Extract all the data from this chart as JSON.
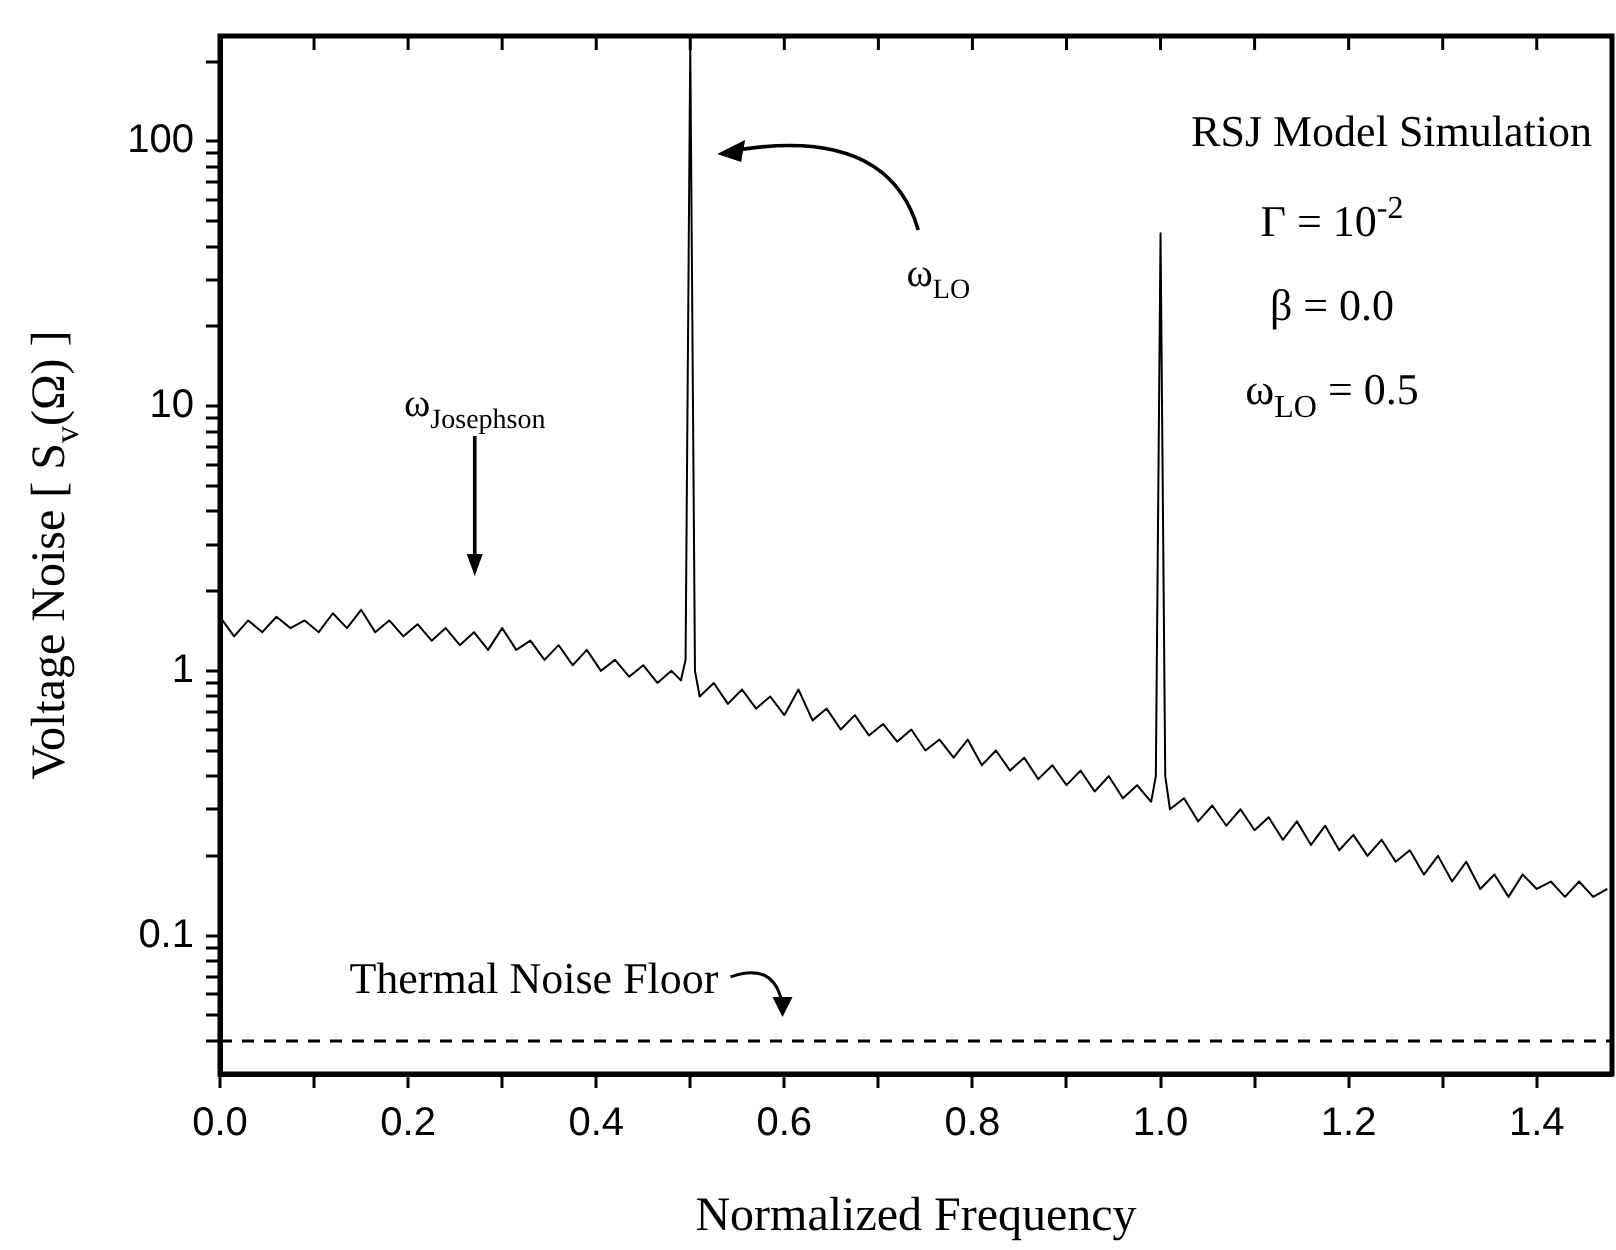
{
  "chart_data": {
    "type": "line",
    "xlabel": "Normalized Frequency",
    "ylabel": "Voltage Noise [ S$_{v}$(Ω) ]",
    "log": "y",
    "marker": "none",
    "line_style": "solid",
    "xlim": [
      0,
      1.48
    ],
    "xticks": [
      {
        "value": 0,
        "label": "0.0"
      },
      {
        "value": 0.1,
        "label": null
      },
      {
        "value": 0.2,
        "label": "0.2"
      },
      {
        "value": 0.3,
        "label": null
      },
      {
        "value": 0.4,
        "label": "0.4"
      },
      {
        "value": 0.5,
        "label": null
      },
      {
        "value": 0.6,
        "label": "0.6"
      },
      {
        "value": 0.7,
        "label": null
      },
      {
        "value": 0.8,
        "label": "0.8"
      },
      {
        "value": 0.9,
        "label": null
      },
      {
        "value": 1,
        "label": "1.0"
      },
      {
        "value": 1.1,
        "label": null
      },
      {
        "value": 1.2,
        "label": "1.2"
      },
      {
        "value": 1.3,
        "label": null
      },
      {
        "value": 1.4,
        "label": "1.4"
      }
    ],
    "ylim": [
      0.03,
      250
    ],
    "yticks": [
      {
        "value": 0.04,
        "label": null
      },
      {
        "value": 0.05,
        "label": null
      },
      {
        "value": 0.06,
        "label": null
      },
      {
        "value": 0.07,
        "label": null
      },
      {
        "value": 0.08,
        "label": null
      },
      {
        "value": 0.09,
        "label": null
      },
      0.1,
      {
        "value": 0.2,
        "label": null
      },
      {
        "value": 0.3,
        "label": null
      },
      {
        "value": 0.4,
        "label": null
      },
      {
        "value": 0.5,
        "label": null
      },
      {
        "value": 0.6,
        "label": null
      },
      {
        "value": 0.7,
        "label": null
      },
      {
        "value": 0.8,
        "label": null
      },
      {
        "value": 0.9,
        "label": null
      },
      1,
      {
        "value": 2,
        "label": null
      },
      {
        "value": 3,
        "label": null
      },
      {
        "value": 4,
        "label": null
      },
      {
        "value": 5,
        "label": null
      },
      {
        "value": 6,
        "label": null
      },
      {
        "value": 7,
        "label": null
      },
      {
        "value": 8,
        "label": null
      },
      {
        "value": 9,
        "label": null
      },
      10,
      {
        "value": 20,
        "label": null
      },
      {
        "value": 30,
        "label": null
      },
      {
        "value": 40,
        "label": null
      },
      {
        "value": 50,
        "label": null
      },
      {
        "value": 60,
        "label": null
      },
      {
        "value": 70,
        "label": null
      },
      {
        "value": 80,
        "label": null
      },
      {
        "value": 90,
        "label": null
      },
      100,
      {
        "value": 200,
        "label": null
      }
    ],
    "series": [
      {
        "color": "#000000",
        "x": [
          0,
          0.015,
          0.03,
          0.045,
          0.06,
          0.075,
          0.09,
          0.105,
          0.12,
          0.135,
          0.15,
          0.165,
          0.18,
          0.195,
          0.21,
          0.225,
          0.24,
          0.255,
          0.27,
          0.285,
          0.3,
          0.315,
          0.33,
          0.345,
          0.36,
          0.375,
          0.39,
          0.405,
          0.42,
          0.435,
          0.45,
          0.465,
          0.48,
          0.49,
          0.495,
          0.5,
          0.505,
          0.51,
          0.525,
          0.54,
          0.555,
          0.57,
          0.585,
          0.6,
          0.615,
          0.63,
          0.645,
          0.66,
          0.675,
          0.69,
          0.705,
          0.72,
          0.735,
          0.75,
          0.765,
          0.78,
          0.795,
          0.81,
          0.825,
          0.84,
          0.855,
          0.87,
          0.885,
          0.9,
          0.915,
          0.93,
          0.945,
          0.96,
          0.975,
          0.99,
          0.995,
          1,
          1.005,
          1.01,
          1.025,
          1.04,
          1.055,
          1.07,
          1.085,
          1.1,
          1.115,
          1.13,
          1.145,
          1.16,
          1.175,
          1.19,
          1.205,
          1.22,
          1.235,
          1.25,
          1.265,
          1.28,
          1.295,
          1.31,
          1.325,
          1.34,
          1.355,
          1.37,
          1.385,
          1.4,
          1.415,
          1.43,
          1.445,
          1.46,
          1.475
        ],
        "values": [
          1.6,
          1.35,
          1.55,
          1.4,
          1.6,
          1.45,
          1.55,
          1.4,
          1.65,
          1.45,
          1.7,
          1.4,
          1.55,
          1.35,
          1.5,
          1.3,
          1.45,
          1.25,
          1.4,
          1.2,
          1.45,
          1.2,
          1.3,
          1.1,
          1.25,
          1.05,
          1.2,
          1,
          1.1,
          0.95,
          1.05,
          0.9,
          1,
          0.92,
          1.1,
          230,
          1,
          0.8,
          0.9,
          0.75,
          0.85,
          0.72,
          0.8,
          0.68,
          0.85,
          0.65,
          0.72,
          0.6,
          0.68,
          0.57,
          0.63,
          0.54,
          0.6,
          0.5,
          0.55,
          0.47,
          0.55,
          0.44,
          0.5,
          0.42,
          0.47,
          0.39,
          0.44,
          0.37,
          0.42,
          0.35,
          0.4,
          0.33,
          0.37,
          0.32,
          0.4,
          45,
          0.4,
          0.3,
          0.33,
          0.27,
          0.31,
          0.26,
          0.3,
          0.25,
          0.28,
          0.23,
          0.27,
          0.22,
          0.26,
          0.21,
          0.24,
          0.2,
          0.23,
          0.19,
          0.21,
          0.17,
          0.2,
          0.16,
          0.19,
          0.15,
          0.17,
          0.14,
          0.17,
          0.15,
          0.16,
          0.14,
          0.16,
          0.14,
          0.15
        ]
      }
    ],
    "ref_lines": [
      {
        "axis": "y",
        "value": 0.04,
        "label": "Thermal Noise Floor",
        "color": "#000000",
        "line_style": "dashed"
      }
    ],
    "annotations": [
      "RSJ Model Simulation",
      "Γ = 10$^{-2}$",
      "β = 0.0",
      "ω$_{LO}$ = 0.5",
      "ω$_{LO}$",
      "ω$_{Josephson}$"
    ]
  }
}
